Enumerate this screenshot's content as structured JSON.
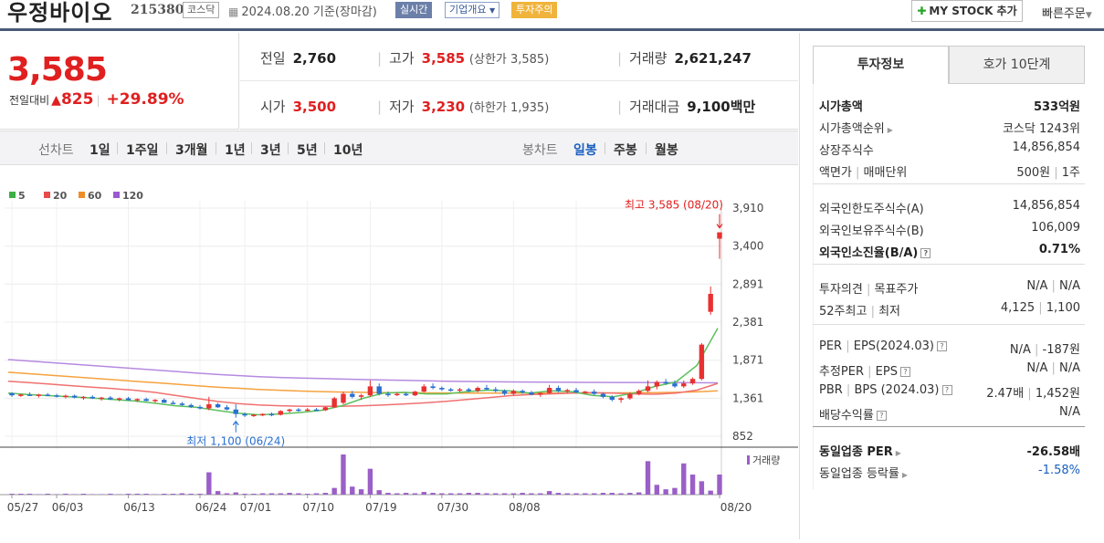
{
  "header": {
    "stock_name": "우정바이오",
    "stock_code": "215380",
    "market": "코스닥",
    "date": "2024.08.20",
    "date_suffix": "기준(장마감)",
    "realtime_tag": "실시간",
    "company_tag": "기업개요",
    "warning_tag": "투자주의",
    "my_stock_button": "MY STOCK 추가",
    "quick_order": "빠른주문"
  },
  "quote": {
    "price": "3,585",
    "change_label": "전일대비",
    "change_value": "825",
    "change_pct": "+29.89%",
    "prev_close_label": "전일",
    "prev_close": "2,760",
    "high_label": "고가",
    "high": "3,585",
    "upper_limit": "(상한가 3,585)",
    "volume_label": "거래량",
    "volume": "2,621,247",
    "open_label": "시가",
    "open": "3,500",
    "low_label": "저가",
    "low": "3,230",
    "lower_limit": "(하한가 1,935)",
    "turnover_label": "거래대금",
    "turnover": "9,100",
    "turnover_unit": "백만"
  },
  "periods": {
    "line_label": "선차트",
    "line_items": [
      "1일",
      "1주일",
      "3개월",
      "1년",
      "3년",
      "5년",
      "10년"
    ],
    "candle_label": "봉차트",
    "candle_items": [
      "일봉",
      "주봉",
      "월봉"
    ],
    "selected": "일봉"
  },
  "chart_data": {
    "type": "candlestick",
    "legend": [
      {
        "name": "5",
        "color": "#3cb043"
      },
      {
        "name": "20",
        "color": "#e84a4a"
      },
      {
        "name": "60",
        "color": "#f08c28"
      },
      {
        "name": "120",
        "color": "#9b59d0"
      }
    ],
    "y_ticks": [
      "3,910",
      "3,400",
      "2,891",
      "2,381",
      "1,871",
      "1,361",
      "852"
    ],
    "ylim": [
      852,
      3910
    ],
    "x_ticks": [
      "05/27",
      "06/03",
      "06/13",
      "06/24",
      "07/01",
      "07/10",
      "07/19",
      "07/30",
      "08/08",
      "08/20"
    ],
    "high_annotation": "최고 3,585 (08/20)",
    "low_annotation": "최저 1,100 (06/24)",
    "volume_label": "거래량",
    "candles": [
      [
        1430,
        1440,
        1380,
        1400
      ],
      [
        1400,
        1420,
        1380,
        1410
      ],
      [
        1410,
        1440,
        1390,
        1395
      ],
      [
        1395,
        1420,
        1370,
        1410
      ],
      [
        1410,
        1430,
        1390,
        1400
      ],
      [
        1400,
        1420,
        1370,
        1385
      ],
      [
        1385,
        1410,
        1360,
        1395
      ],
      [
        1395,
        1410,
        1360,
        1370
      ],
      [
        1370,
        1390,
        1340,
        1380
      ],
      [
        1380,
        1400,
        1350,
        1360
      ],
      [
        1360,
        1380,
        1330,
        1370
      ],
      [
        1370,
        1390,
        1340,
        1345
      ],
      [
        1345,
        1370,
        1320,
        1360
      ],
      [
        1360,
        1380,
        1330,
        1335
      ],
      [
        1335,
        1360,
        1310,
        1350
      ],
      [
        1350,
        1370,
        1320,
        1325
      ],
      [
        1325,
        1350,
        1300,
        1340
      ],
      [
        1340,
        1360,
        1310,
        1300
      ],
      [
        1300,
        1330,
        1280,
        1290
      ],
      [
        1290,
        1310,
        1260,
        1270
      ],
      [
        1270,
        1290,
        1230,
        1245
      ],
      [
        1245,
        1270,
        1210,
        1225
      ],
      [
        1225,
        1380,
        1200,
        1280
      ],
      [
        1280,
        1300,
        1230,
        1240
      ],
      [
        1240,
        1270,
        1200,
        1210
      ],
      [
        1210,
        1280,
        1100,
        1150
      ],
      [
        1150,
        1170,
        1110,
        1130
      ],
      [
        1130,
        1150,
        1110,
        1140
      ],
      [
        1140,
        1160,
        1120,
        1150
      ],
      [
        1150,
        1170,
        1120,
        1140
      ],
      [
        1140,
        1200,
        1130,
        1190
      ],
      [
        1190,
        1220,
        1170,
        1210
      ],
      [
        1210,
        1230,
        1180,
        1200
      ],
      [
        1200,
        1230,
        1190,
        1210
      ],
      [
        1210,
        1230,
        1190,
        1200
      ],
      [
        1200,
        1250,
        1190,
        1240
      ],
      [
        1240,
        1380,
        1230,
        1360
      ],
      [
        1300,
        1450,
        1280,
        1420
      ],
      [
        1420,
        1460,
        1360,
        1380
      ],
      [
        1380,
        1420,
        1340,
        1400
      ],
      [
        1400,
        1600,
        1380,
        1520
      ],
      [
        1520,
        1560,
        1400,
        1420
      ],
      [
        1420,
        1450,
        1380,
        1410
      ],
      [
        1410,
        1440,
        1390,
        1420
      ],
      [
        1420,
        1440,
        1390,
        1400
      ],
      [
        1400,
        1460,
        1390,
        1450
      ],
      [
        1450,
        1550,
        1440,
        1520
      ],
      [
        1520,
        1560,
        1480,
        1500
      ],
      [
        1500,
        1520,
        1460,
        1480
      ],
      [
        1480,
        1500,
        1450,
        1470
      ],
      [
        1470,
        1500,
        1440,
        1480
      ],
      [
        1480,
        1500,
        1440,
        1460
      ],
      [
        1460,
        1520,
        1440,
        1500
      ],
      [
        1500,
        1540,
        1470,
        1480
      ],
      [
        1480,
        1510,
        1440,
        1460
      ],
      [
        1460,
        1480,
        1400,
        1420
      ],
      [
        1420,
        1480,
        1400,
        1460
      ],
      [
        1460,
        1480,
        1420,
        1440
      ],
      [
        1440,
        1460,
        1400,
        1410
      ],
      [
        1410,
        1440,
        1380,
        1430
      ],
      [
        1430,
        1540,
        1420,
        1500
      ],
      [
        1500,
        1530,
        1440,
        1460
      ],
      [
        1460,
        1490,
        1430,
        1470
      ],
      [
        1470,
        1500,
        1430,
        1440
      ],
      [
        1440,
        1460,
        1420,
        1450
      ],
      [
        1450,
        1480,
        1400,
        1420
      ],
      [
        1420,
        1440,
        1360,
        1380
      ],
      [
        1380,
        1400,
        1320,
        1340
      ],
      [
        1340,
        1380,
        1300,
        1360
      ],
      [
        1360,
        1440,
        1340,
        1420
      ],
      [
        1420,
        1480,
        1400,
        1460
      ],
      [
        1460,
        1600,
        1440,
        1520
      ],
      [
        1520,
        1600,
        1480,
        1580
      ],
      [
        1580,
        1620,
        1540,
        1560
      ],
      [
        1560,
        1600,
        1500,
        1520
      ],
      [
        1520,
        1600,
        1500,
        1560
      ],
      [
        1560,
        1640,
        1540,
        1620
      ],
      [
        1620,
        2100,
        1600,
        2080
      ],
      [
        2520,
        2860,
        2480,
        2760
      ],
      [
        3500,
        3585,
        3230,
        3585
      ]
    ],
    "volumes": [
      2,
      2,
      2,
      1,
      2,
      1,
      2,
      1,
      2,
      1,
      1,
      2,
      1,
      2,
      2,
      2,
      1,
      2,
      2,
      3,
      2,
      2,
      50,
      8,
      3,
      5,
      2,
      2,
      3,
      3,
      3,
      4,
      3,
      2,
      3,
      4,
      15,
      90,
      18,
      12,
      58,
      10,
      4,
      3,
      4,
      3,
      6,
      4,
      3,
      3,
      3,
      4,
      4,
      3,
      3,
      3,
      3,
      4,
      3,
      3,
      8,
      4,
      3,
      3,
      3,
      3,
      4,
      4,
      3,
      4,
      5,
      75,
      22,
      12,
      15,
      70,
      45,
      30,
      9,
      45
    ],
    "ma": {
      "ma120": [
        1880,
        1860,
        1840,
        1820,
        1800,
        1780,
        1760,
        1740,
        1720,
        1700,
        1680,
        1665,
        1650,
        1640,
        1632,
        1625,
        1618,
        1612,
        1606,
        1600,
        1595,
        1590,
        1586,
        1582,
        1580,
        1578,
        1576,
        1575,
        1574,
        1573,
        1572,
        1571,
        1570,
        1569,
        1568
      ],
      "ma60": [
        1710,
        1690,
        1670,
        1650,
        1630,
        1610,
        1590,
        1570,
        1550,
        1530,
        1510,
        1495,
        1480,
        1468,
        1458,
        1450,
        1444,
        1440,
        1437,
        1435,
        1433,
        1432,
        1431,
        1430,
        1430,
        1430,
        1430,
        1431,
        1432,
        1433,
        1434,
        1436,
        1440,
        1446,
        1460
      ],
      "ma20": [
        1590,
        1570,
        1550,
        1530,
        1510,
        1490,
        1470,
        1440,
        1400,
        1360,
        1320,
        1290,
        1270,
        1260,
        1255,
        1252,
        1255,
        1260,
        1270,
        1285,
        1300,
        1320,
        1345,
        1370,
        1395,
        1410,
        1420,
        1430,
        1435,
        1430,
        1420,
        1415,
        1430,
        1470,
        1560
      ],
      "ma5": [
        1430,
        1410,
        1395,
        1380,
        1365,
        1345,
        1325,
        1295,
        1260,
        1240,
        1200,
        1160,
        1140,
        1150,
        1170,
        1200,
        1260,
        1360,
        1430,
        1440,
        1420,
        1420,
        1450,
        1470,
        1460,
        1430,
        1460,
        1450,
        1400,
        1380,
        1430,
        1520,
        1580,
        1800,
        2300
      ]
    }
  },
  "right": {
    "tab_active": "투자정보",
    "tab_other": "호가 10단계",
    "rows": [
      {
        "k": "시가총액",
        "v": "533억원",
        "bold": true
      },
      {
        "k": "시가총액순위",
        "v": "코스닥 1243위",
        "arrow": true
      },
      {
        "k": "상장주식수",
        "v": "14,856,854"
      },
      {
        "k": "액면가",
        "k2": "매매단위",
        "v": "500원",
        "v2": "1주"
      },
      {
        "k": "외국인한도주식수(A)",
        "v": "14,856,854"
      },
      {
        "k": "외국인보유주식수(B)",
        "v": "106,009"
      },
      {
        "k": "외국인소진율(B/A)",
        "v": "0.71%",
        "bold": true,
        "help": true
      },
      {
        "k": "투자의견",
        "k2": "목표주가",
        "v": "N/A",
        "v2": "N/A"
      },
      {
        "k": "52주최고",
        "k2": "최저",
        "v": "4,125",
        "v2": "1,100"
      },
      {
        "k": "PER",
        "k2": "EPS(2024.03)",
        "v": "N/A",
        "v2": "-187원",
        "help": true
      },
      {
        "k": "추정PER",
        "k2": "EPS",
        "v": "N/A",
        "v2": "N/A",
        "help": true
      },
      {
        "k": "PBR",
        "k2": "BPS (2024.03)",
        "v": "2.47배",
        "v2": "1,452원",
        "help": true
      },
      {
        "k": "배당수익률",
        "v": "N/A",
        "help": true
      },
      {
        "k": "동일업종 PER",
        "v": "-26.58배",
        "bold": true,
        "arrow": true
      },
      {
        "k": "동일업종 등락률",
        "v": "-1.58%",
        "blue": true,
        "arrow": true
      }
    ]
  }
}
